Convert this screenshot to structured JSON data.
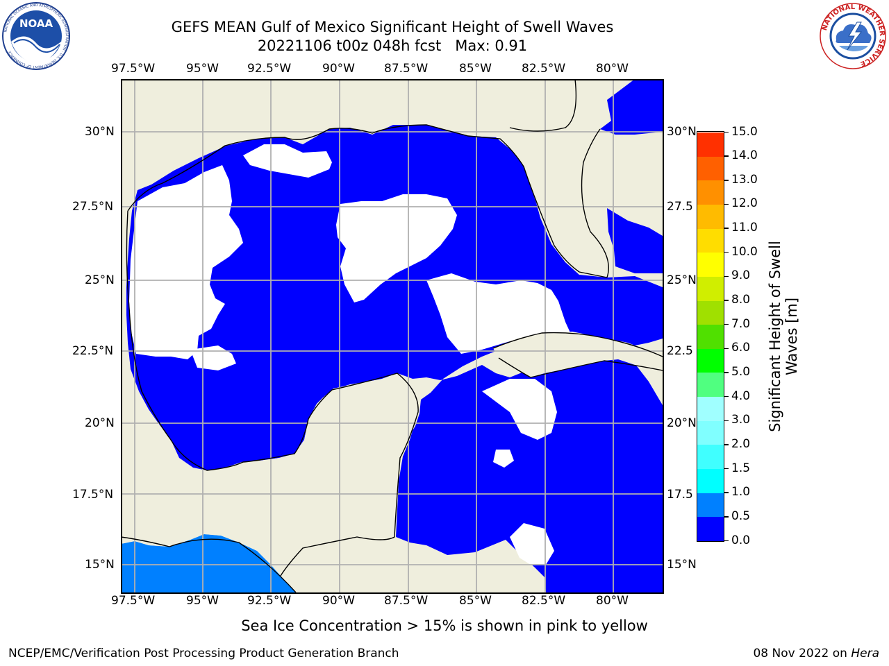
{
  "header": {
    "title_line1": "GEFS MEAN Gulf of Mexico Significant Height of Swell Waves",
    "title_line2": "20221106 t00z 048h fcst   Max: 0.91"
  },
  "logos": {
    "left": {
      "text": "NOAA",
      "ring_text": "NATIONAL OCEANIC AND ATMOSPHERIC ADMINISTRATION · U.S. DEPARTMENT OF COMMERCE"
    },
    "right": {
      "ring_text": "NATIONAL WEATHER SERVICE"
    }
  },
  "map": {
    "lon_labels": [
      "97.5°W",
      "95°W",
      "92.5°W",
      "90°W",
      "87.5°W",
      "85°W",
      "82.5°W",
      "80°W"
    ],
    "lat_labels_left": [
      "30°N",
      "27.5°N",
      "25°N",
      "22.5°N",
      "20°N",
      "17.5°N",
      "15°N"
    ],
    "lat_labels_right": [
      "30°N",
      "27.5",
      "25°N",
      "22.5",
      "20°N",
      "17.5",
      "15°N"
    ],
    "colors": {
      "land": "#efeedd",
      "ocean_low": "#0000ff",
      "ocean_mid": "#0080ff",
      "grid": "#b0b0b0"
    }
  },
  "colorbar": {
    "label": "Significant Height of Swell Waves [m]",
    "label_line1": "Significant Height of Swell",
    "label_line2": "Waves [m]",
    "ticks": [
      "0.0",
      "0.5",
      "1.0",
      "1.5",
      "2.0",
      "3.0",
      "4.0",
      "5.0",
      "6.0",
      "7.0",
      "8.0",
      "9.0",
      "10.0",
      "11.0",
      "12.0",
      "13.0",
      "14.0",
      "15.0"
    ],
    "colors": [
      "#0000ff",
      "#0080ff",
      "#00ffff",
      "#40ffff",
      "#80ffff",
      "#a0ffff",
      "#50ff80",
      "#00ff00",
      "#50e000",
      "#a0e000",
      "#d0ee00",
      "#ffff00",
      "#ffdd00",
      "#ffbb00",
      "#ff9000",
      "#ff6000",
      "#ff3000",
      "#ff0000"
    ]
  },
  "note": "Sea Ice Concentration > 15% is shown in pink to yellow",
  "footer": {
    "left": "NCEP/EMC/Verification Post Processing Product Generation Branch",
    "right_date": "08 Nov 2022 on ",
    "right_host": "Hera"
  }
}
